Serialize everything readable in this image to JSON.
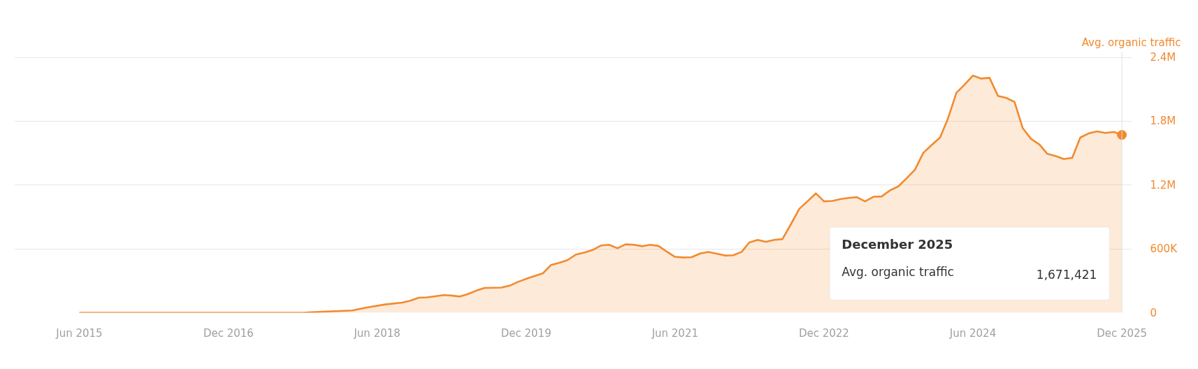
{
  "chart_data": {
    "type": "area",
    "ylabel": "Avg. organic traffic",
    "x": [
      "2015-06",
      "2017-09",
      "2017-10",
      "2018-03",
      "2018-05",
      "2018-07",
      "2018-09",
      "2018-10",
      "2018-11",
      "2018-12",
      "2019-02",
      "2019-03",
      "2019-04",
      "2019-05",
      "2019-06",
      "2019-07",
      "2019-09",
      "2019-10",
      "2019-11",
      "2019-12",
      "2020-01",
      "2020-02",
      "2020-03",
      "2020-04",
      "2020-05",
      "2020-06",
      "2020-07",
      "2020-08",
      "2020-09",
      "2020-10",
      "2020-11",
      "2020-12",
      "2021-01",
      "2021-02",
      "2021-03",
      "2021-04",
      "2021-05",
      "2021-06",
      "2021-07",
      "2021-08",
      "2021-09",
      "2021-10",
      "2021-11",
      "2021-12",
      "2022-01",
      "2022-02",
      "2022-03",
      "2022-04",
      "2022-05",
      "2022-06",
      "2022-07",
      "2022-08",
      "2022-09",
      "2022-10",
      "2022-11",
      "2022-12",
      "2023-01",
      "2023-02",
      "2023-03",
      "2023-04",
      "2023-05",
      "2023-06",
      "2023-07",
      "2023-08",
      "2023-09",
      "2023-10",
      "2023-11",
      "2023-12",
      "2024-01",
      "2024-02",
      "2024-03",
      "2024-04",
      "2024-05",
      "2024-06",
      "2024-07",
      "2024-08",
      "2024-09",
      "2024-10",
      "2024-11",
      "2024-12",
      "2025-01",
      "2025-02",
      "2025-03",
      "2025-04",
      "2025-05",
      "2025-06",
      "2025-07",
      "2025-08",
      "2025-09",
      "2025-10",
      "2025-11",
      "2025-12"
    ],
    "series": [
      {
        "color": "#f28a2e",
        "values": [
          0,
          0,
          4000,
          21000,
          53000,
          78000,
          95000,
          113000,
          141000,
          145000,
          166000,
          162000,
          152000,
          176000,
          208000,
          233000,
          236000,
          254000,
          290000,
          318000,
          345000,
          371000,
          448000,
          469000,
          494000,
          547000,
          565000,
          589000,
          632000,
          639000,
          607000,
          643000,
          639000,
          625000,
          639000,
          628000,
          575000,
          525000,
          520000,
          522000,
          557000,
          572000,
          555000,
          538000,
          540000,
          572000,
          660000,
          685000,
          667000,
          685000,
          692000,
          831000,
          976000,
          1047000,
          1122000,
          1047000,
          1051000,
          1069000,
          1079000,
          1086000,
          1047000,
          1090000,
          1093000,
          1150000,
          1189000,
          1264000,
          1346000,
          1502000,
          1576000,
          1647000,
          1825000,
          2066000,
          2144000,
          2229000,
          2201000,
          2208000,
          2038000,
          2020000,
          1981000,
          1736000,
          1633000,
          1580000,
          1495000,
          1473000,
          1445000,
          1455000,
          1647000,
          1686000,
          1704000,
          1690000,
          1700000,
          1671421
        ]
      }
    ],
    "xlim": [
      "2014-10-05",
      "2026-01-07"
    ],
    "xticks": [
      {
        "value": "2015-06",
        "label": "Jun 2015"
      },
      {
        "value": "2016-12",
        "label": "Dec 2016"
      },
      {
        "value": "2018-06",
        "label": "Jun 2018"
      },
      {
        "value": "2019-12",
        "label": "Dec 2019"
      },
      {
        "value": "2021-06",
        "label": "Jun 2021"
      },
      {
        "value": "2022-12",
        "label": "Dec 2022"
      },
      {
        "value": "2024-06",
        "label": "Jun 2024"
      },
      {
        "value": "2025-12",
        "label": "Dec 2025"
      }
    ],
    "ylim": [
      0,
      2450000
    ],
    "ref_lines": [
      {
        "axis": "x",
        "value": "2025-12",
        "color": "#e0e0e0"
      }
    ],
    "yticks": [
      {
        "value": 0,
        "label": "0"
      },
      {
        "value": 600000,
        "label": "600K"
      },
      {
        "value": 1200000,
        "label": "1.2M"
      },
      {
        "value": 1800000,
        "label": "1.8M"
      },
      {
        "value": 2400000,
        "label": "2.4M"
      }
    ],
    "grid": "y",
    "annotations": [
      "December 2025",
      "Avg. organic traffic",
      "1,671,421"
    ]
  }
}
